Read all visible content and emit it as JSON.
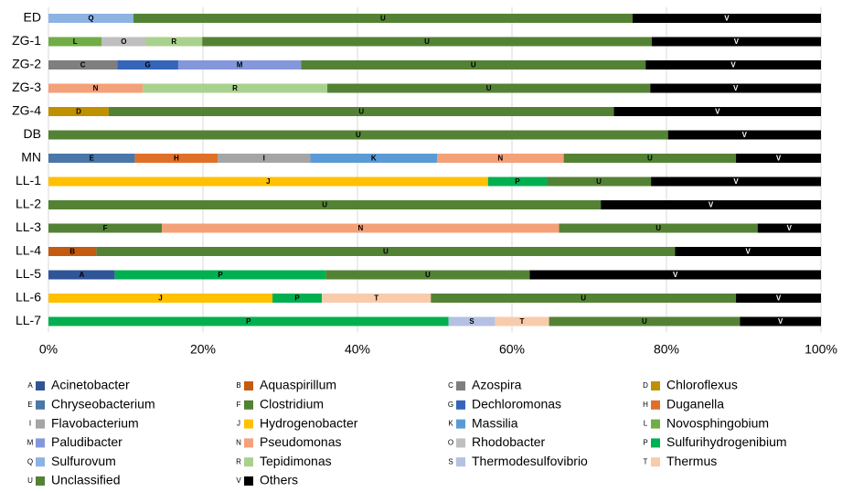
{
  "chart_data": {
    "type": "stacked_bar_horizontal",
    "categories": [
      "ED",
      "ZG-1",
      "ZG-2",
      "ZG-3",
      "ZG-4",
      "DB",
      "MN",
      "LL-1",
      "LL-2",
      "LL-3",
      "LL-4",
      "LL-5",
      "LL-6",
      "LL-7"
    ],
    "xlim": [
      0,
      100
    ],
    "xticks": [
      {
        "value": 0,
        "label": "0%"
      },
      {
        "value": 20,
        "label": "20%"
      },
      {
        "value": 40,
        "label": "40%"
      },
      {
        "value": 60,
        "label": "60%"
      },
      {
        "value": 80,
        "label": "80%"
      },
      {
        "value": 100,
        "label": "100%"
      }
    ],
    "grid": true,
    "series": [
      {
        "code": "A",
        "name": "Acinetobacter",
        "color": "#2f5597",
        "values": [
          null,
          null,
          null,
          null,
          null,
          null,
          null,
          null,
          null,
          null,
          null,
          8.6,
          null,
          null
        ]
      },
      {
        "code": "B",
        "name": "Aquaspirillum",
        "color": "#c55a11",
        "values": [
          null,
          null,
          null,
          null,
          null,
          null,
          null,
          null,
          null,
          null,
          6.2,
          null,
          null,
          null
        ]
      },
      {
        "code": "C",
        "name": "Azospira",
        "color": "#7f7f7f",
        "values": [
          null,
          null,
          8.9,
          null,
          null,
          null,
          null,
          null,
          null,
          null,
          null,
          null,
          null,
          null
        ]
      },
      {
        "code": "D",
        "name": "Chloroflexus",
        "color": "#bf9000",
        "values": [
          null,
          null,
          null,
          null,
          7.8,
          null,
          null,
          null,
          null,
          null,
          null,
          null,
          null,
          null
        ]
      },
      {
        "code": "E",
        "name": "Chryseobacterium",
        "color": "#4a76a8",
        "values": [
          null,
          null,
          null,
          null,
          null,
          null,
          11.2,
          null,
          null,
          null,
          null,
          null,
          null,
          null
        ]
      },
      {
        "code": "F",
        "name": "Clostridium",
        "color": "#548235",
        "values": [
          null,
          null,
          null,
          null,
          null,
          null,
          null,
          null,
          null,
          14.7,
          null,
          null,
          null,
          null
        ]
      },
      {
        "code": "G",
        "name": "Dechloromonas",
        "color": "#3465b8",
        "values": [
          null,
          null,
          7.9,
          null,
          null,
          null,
          null,
          null,
          null,
          null,
          null,
          null,
          null,
          null
        ]
      },
      {
        "code": "H",
        "name": "Duganella",
        "color": "#e07027",
        "values": [
          null,
          null,
          null,
          null,
          null,
          null,
          10.7,
          null,
          null,
          null,
          null,
          null,
          null,
          null
        ]
      },
      {
        "code": "I",
        "name": "Flavobacterium",
        "color": "#a5a5a5",
        "values": [
          null,
          null,
          null,
          null,
          null,
          null,
          12.0,
          null,
          null,
          null,
          null,
          null,
          null,
          null
        ]
      },
      {
        "code": "J",
        "name": "Hydrogenobacter",
        "color": "#ffc000",
        "values": [
          null,
          null,
          null,
          null,
          null,
          null,
          null,
          56.9,
          null,
          null,
          null,
          null,
          29.0,
          null
        ]
      },
      {
        "code": "K",
        "name": "Massilia",
        "color": "#5b9bd5",
        "values": [
          null,
          null,
          null,
          null,
          null,
          null,
          16.4,
          null,
          null,
          null,
          null,
          null,
          null,
          null
        ]
      },
      {
        "code": "L",
        "name": "Novosphingobium",
        "color": "#70ad47",
        "values": [
          null,
          6.9,
          null,
          null,
          null,
          null,
          null,
          null,
          null,
          null,
          null,
          null,
          null,
          null
        ]
      },
      {
        "code": "M",
        "name": "Paludibacter",
        "color": "#8497db",
        "values": [
          null,
          null,
          15.9,
          null,
          null,
          null,
          null,
          null,
          null,
          null,
          null,
          null,
          null,
          null
        ]
      },
      {
        "code": "N",
        "name": "Pseudomonas",
        "color": "#f4a078",
        "values": [
          null,
          null,
          null,
          12.2,
          null,
          null,
          16.4,
          null,
          null,
          51.4,
          null,
          null,
          null,
          null
        ]
      },
      {
        "code": "O",
        "name": "Rhodobacter",
        "color": "#bfbfbf",
        "values": [
          null,
          5.7,
          null,
          null,
          null,
          null,
          null,
          null,
          null,
          null,
          null,
          null,
          null,
          null
        ]
      },
      {
        "code": "P",
        "name": "Sulfurihydrogenibium",
        "color": "#00b050",
        "values": [
          null,
          null,
          null,
          null,
          null,
          null,
          null,
          7.6,
          null,
          null,
          null,
          27.3,
          6.4,
          51.8
        ]
      },
      {
        "code": "Q",
        "name": "Sulfurovum",
        "color": "#8db3e2",
        "values": [
          11,
          null,
          null,
          null,
          null,
          null,
          null,
          null,
          null,
          null,
          null,
          null,
          null,
          null
        ]
      },
      {
        "code": "R",
        "name": "Tepidimonas",
        "color": "#a9d18e",
        "values": [
          null,
          7.3,
          null,
          23.9,
          null,
          null,
          null,
          null,
          null,
          null,
          null,
          null,
          null,
          null
        ]
      },
      {
        "code": "S",
        "name": "Thermodesulfovibrio",
        "color": "#b4c0e4",
        "values": [
          null,
          null,
          null,
          null,
          null,
          null,
          null,
          null,
          null,
          null,
          null,
          null,
          null,
          6.0
        ]
      },
      {
        "code": "T",
        "name": "Thermus",
        "color": "#f8cbad",
        "values": [
          null,
          null,
          null,
          null,
          null,
          null,
          null,
          null,
          null,
          null,
          null,
          null,
          14.1,
          7.0
        ]
      },
      {
        "code": "U",
        "name": "Unclassified",
        "color": "#548235",
        "values": [
          64.6,
          58.2,
          44.6,
          41.8,
          65.4,
          80.2,
          22.3,
          13.5,
          71.5,
          25.7,
          74.9,
          26.4,
          39.5,
          24.7
        ]
      },
      {
        "code": "V",
        "name": "Others",
        "color": "#000000",
        "values": [
          24.4,
          21.9,
          22.7,
          22.1,
          26.8,
          19.8,
          11.0,
          22.0,
          28.5,
          8.2,
          18.9,
          37.7,
          11.0,
          10.5
        ]
      }
    ]
  }
}
